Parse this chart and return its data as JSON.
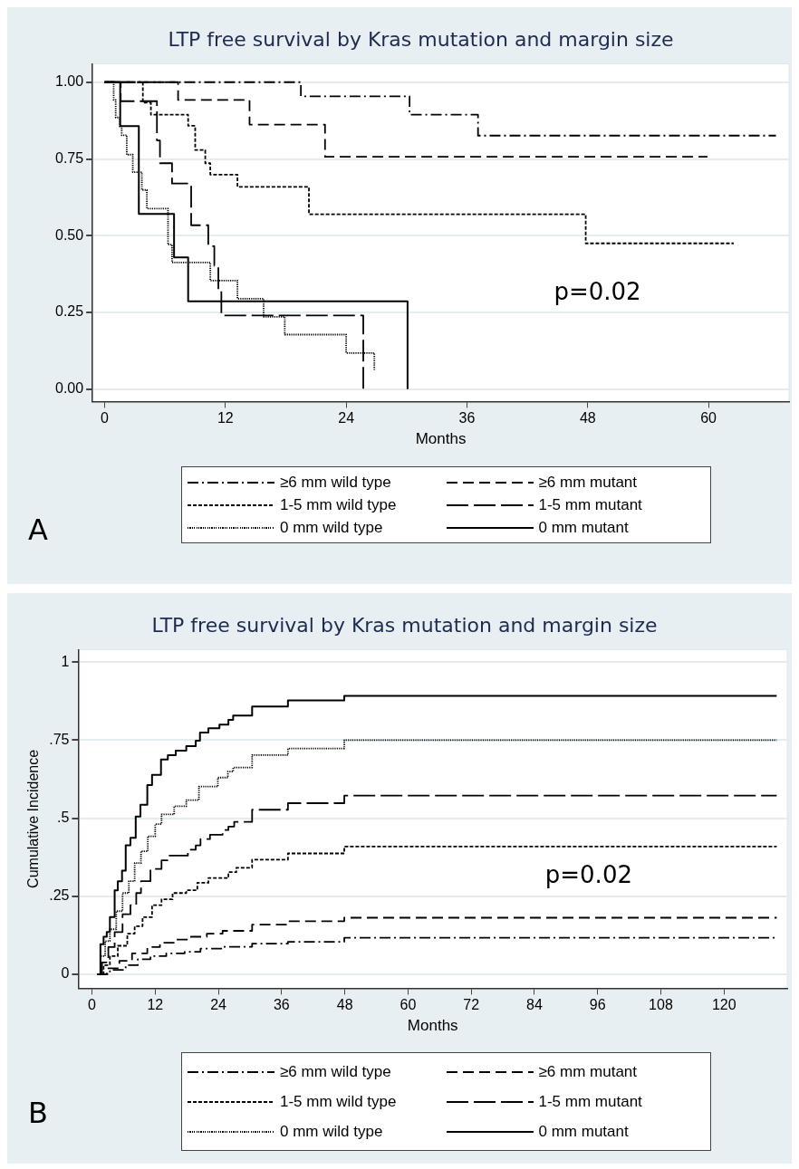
{
  "chart_data": [
    {
      "type": "step",
      "title": "LTP free survival by Kras mutation and margin size",
      "xlabel": "Months",
      "xlim": [
        -1.2,
        68
      ],
      "xticks": [
        0,
        12,
        24,
        36,
        48,
        60
      ],
      "ylim": [
        -0.04,
        1.06
      ],
      "yticks": [
        {
          "value": 0,
          "label": "0.00"
        },
        {
          "value": 0.25,
          "label": "0.25"
        },
        {
          "value": 0.5,
          "label": "0.50"
        },
        {
          "value": 0.75,
          "label": "0.75"
        },
        {
          "value": 1,
          "label": "1.00"
        }
      ],
      "grid": "y",
      "legend": "bottom",
      "marker": "none",
      "annotations": [
        "p=0.02",
        "A"
      ],
      "series": [
        {
          "name": "≥6 mm wild type",
          "color": "#000000",
          "line_style": "dashdot",
          "x": [
            0,
            19.5,
            30.3,
            37.1,
            66.7
          ],
          "values": [
            1,
            0.954,
            0.894,
            0.826,
            0.826
          ]
        },
        {
          "name": "≥6 mm mutant",
          "color": "#000000",
          "line_style": "dashed",
          "x": [
            0,
            7.3,
            14.4,
            21.9,
            59.9
          ],
          "values": [
            1,
            0.942,
            0.862,
            0.757,
            0.757
          ]
        },
        {
          "name": "1-5 mm wild type",
          "color": "#000000",
          "line_style": "shortdash",
          "x": [
            0,
            3.8,
            4.6,
            8.3,
            9.0,
            10.0,
            10.5,
            13.2,
            20.3,
            47.8,
            62.5
          ],
          "values": [
            1,
            0.933,
            0.894,
            0.858,
            0.779,
            0.736,
            0.699,
            0.659,
            0.57,
            0.475,
            0.475
          ]
        },
        {
          "name": "1-5 mm mutant",
          "color": "#000000",
          "line_style": "longdash",
          "x": [
            0,
            1.6,
            5.2,
            5.5,
            6.7,
            8.6,
            10.3,
            10.9,
            11.3,
            11.6,
            25.7
          ],
          "values": [
            1,
            0.938,
            0.81,
            0.736,
            0.67,
            0.534,
            0.466,
            0.402,
            0.322,
            0.24,
            0
          ]
        },
        {
          "name": "0 mm wild type",
          "color": "#000000",
          "line_style": "dotted",
          "x": [
            0,
            0.9,
            1.1,
            1.5,
            1.7,
            2.2,
            2.8,
            3.7,
            4.2,
            6.3,
            6.7,
            10.5,
            13.2,
            15.8,
            17.9,
            24.0,
            26.8
          ],
          "values": [
            1,
            0.942,
            0.885,
            0.856,
            0.827,
            0.764,
            0.707,
            0.649,
            0.588,
            0.471,
            0.413,
            0.354,
            0.295,
            0.236,
            0.178,
            0.118,
            0.06
          ]
        },
        {
          "name": "0 mm mutant",
          "color": "#000000",
          "line_style": "solid",
          "x": [
            0,
            1.55,
            3.4,
            6.9,
            8.3,
            30.1
          ],
          "values": [
            1,
            0.857,
            0.571,
            0.429,
            0.286,
            0
          ]
        }
      ]
    },
    {
      "type": "step",
      "title": "LTP free survival by Kras mutation and margin size",
      "xlabel": "Months",
      "ylabel": "Cumulative Incidence",
      "xlim": [
        -2.6,
        132
      ],
      "xticks": [
        0,
        12,
        24,
        36,
        48,
        60,
        72,
        84,
        96,
        108,
        120
      ],
      "ylim": [
        -0.045,
        1.04
      ],
      "yticks": [
        0,
        {
          "value": 0.25,
          "label": ".25"
        },
        {
          "value": 0.5,
          "label": ".5"
        },
        {
          "value": 0.75,
          "label": ".75"
        },
        1
      ],
      "grid": "y",
      "legend": "bottom",
      "marker": "none",
      "annotations": [
        "p=0.02",
        "B"
      ],
      "series": [
        {
          "name": "≥6 mm wild type",
          "color": "#000000",
          "line_style": "dashdot",
          "x": [
            1.0,
            3.4,
            6.4,
            8.7,
            11.1,
            14.1,
            17.6,
            20.6,
            24.8,
            30.4,
            37.2,
            47.9,
            130
          ],
          "values": [
            0,
            0.014,
            0.029,
            0.048,
            0.058,
            0.067,
            0.072,
            0.082,
            0.088,
            0.098,
            0.104,
            0.117,
            0.117
          ]
        },
        {
          "name": "≥6 mm mutant",
          "color": "#000000",
          "line_style": "dashed",
          "x": [
            1.0,
            2.8,
            5.2,
            7.6,
            10.5,
            12.9,
            15.9,
            18.8,
            21.8,
            24.8,
            30.4,
            37.2,
            47.9,
            130
          ],
          "values": [
            0,
            0.019,
            0.043,
            0.067,
            0.087,
            0.101,
            0.111,
            0.12,
            0.13,
            0.139,
            0.159,
            0.17,
            0.181,
            0.181
          ]
        },
        {
          "name": "1-5 mm wild type",
          "color": "#000000",
          "line_style": "shortdash",
          "x": [
            1.0,
            2.2,
            3.4,
            4.9,
            6.7,
            8.1,
            9.6,
            11.4,
            13.2,
            15.3,
            17.9,
            20.0,
            22.1,
            25.9,
            27.4,
            30.4,
            37.2,
            47.9,
            130
          ],
          "values": [
            0,
            0.029,
            0.058,
            0.091,
            0.13,
            0.154,
            0.183,
            0.221,
            0.24,
            0.26,
            0.269,
            0.293,
            0.308,
            0.327,
            0.341,
            0.367,
            0.387,
            0.409,
            0.409
          ]
        },
        {
          "name": "1-5 mm mutant",
          "color": "#000000",
          "line_style": "longdash",
          "x": [
            1.0,
            1.9,
            3.1,
            4.3,
            5.8,
            7.3,
            8.4,
            9.3,
            11.1,
            13.2,
            14.7,
            18.2,
            19.7,
            20.6,
            22.4,
            24.8,
            25.9,
            27.0,
            30.4,
            37.2,
            47.9,
            130
          ],
          "values": [
            0,
            0.038,
            0.087,
            0.135,
            0.192,
            0.221,
            0.26,
            0.298,
            0.337,
            0.365,
            0.38,
            0.399,
            0.413,
            0.433,
            0.447,
            0.462,
            0.473,
            0.488,
            0.527,
            0.548,
            0.572,
            0.572
          ]
        },
        {
          "name": "0 mm wild type",
          "color": "#000000",
          "line_style": "dotted",
          "x": [
            1.0,
            1.6,
            2.5,
            3.4,
            4.6,
            5.8,
            7.0,
            8.1,
            9.3,
            10.6,
            12.0,
            13.2,
            15.6,
            17.9,
            20.3,
            23.9,
            25.8,
            26.8,
            30.4,
            37.2,
            47.9,
            130
          ],
          "values": [
            0,
            0.058,
            0.106,
            0.144,
            0.202,
            0.26,
            0.298,
            0.356,
            0.394,
            0.442,
            0.481,
            0.512,
            0.538,
            0.558,
            0.601,
            0.63,
            0.649,
            0.662,
            0.702,
            0.723,
            0.75,
            0.75
          ]
        },
        {
          "name": "0 mm mutant",
          "color": "#000000",
          "line_style": "solid",
          "x": [
            1.0,
            1.6,
            2.2,
            2.8,
            3.4,
            4.3,
            4.9,
            5.7,
            6.4,
            7.3,
            8.3,
            9.2,
            10.5,
            11.4,
            13.1,
            14.4,
            15.9,
            17.9,
            19.7,
            20.5,
            22.1,
            24.2,
            25.9,
            26.8,
            30.4,
            37.2,
            47.9,
            130
          ],
          "values": [
            0,
            0.096,
            0.12,
            0.135,
            0.183,
            0.269,
            0.298,
            0.332,
            0.413,
            0.437,
            0.505,
            0.543,
            0.606,
            0.639,
            0.688,
            0.702,
            0.716,
            0.731,
            0.748,
            0.774,
            0.788,
            0.8,
            0.815,
            0.829,
            0.858,
            0.877,
            0.892,
            0.892
          ]
        }
      ]
    }
  ]
}
